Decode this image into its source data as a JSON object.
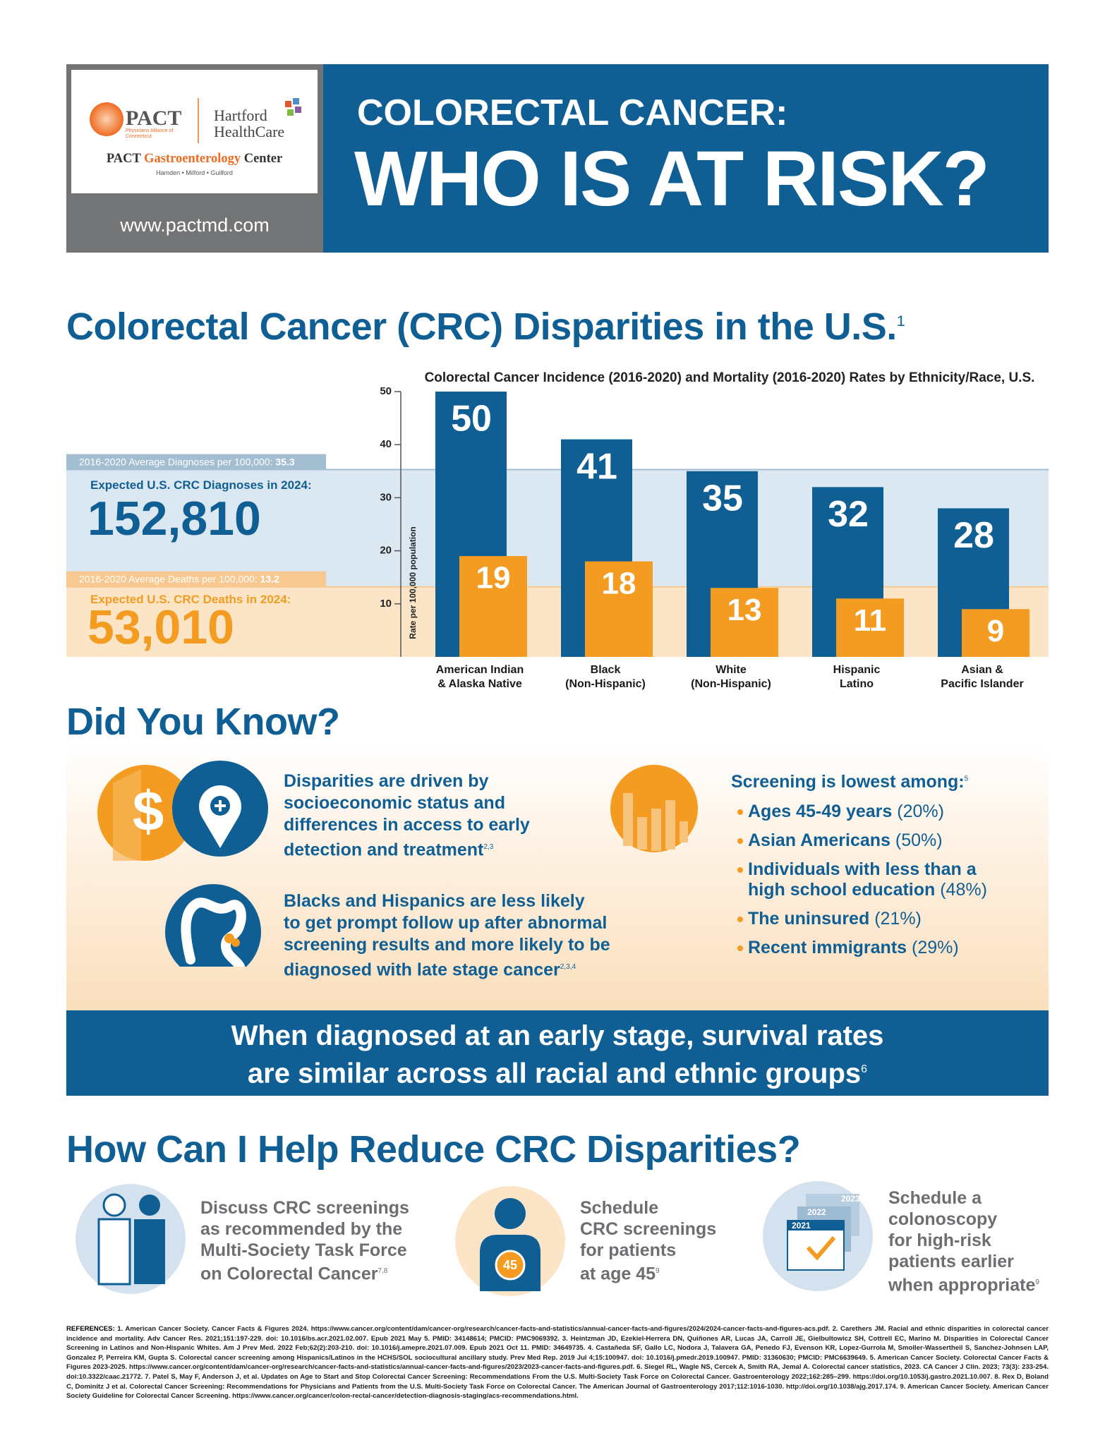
{
  "header": {
    "logo": {
      "pact": "PACT",
      "pact_sub": "Physicians Alliance of Connecticut",
      "partner": "Hartford\nHealthCare",
      "center_a": "PACT ",
      "center_b": "Gastroenterology",
      "center_c": " Center",
      "locations": "Hamden • Milford • Guilford"
    },
    "url": "www.pactmd.com",
    "title_line1": "COLORECTAL CANCER:",
    "title_line2": "WHO IS AT RISK?"
  },
  "disparities": {
    "heading": "Colorectal Cancer (CRC) Disparities in the U.S.",
    "heading_ref": "1",
    "diagnoses_label": "Expected U.S. CRC Diagnoses in 2024:",
    "diagnoses_value": "152,810",
    "deaths_label": "Expected U.S. CRC Deaths in 2024:",
    "deaths_value": "53,010"
  },
  "chart_data": {
    "type": "bar",
    "title": "Colorectal Cancer Incidence (2016-2020) and Mortality (2016-2020) Rates by Ethnicity/Race, U.S.",
    "y_label": "Rate per 100,000 population",
    "categories": [
      "American Indian\n& Alaska Native",
      "Black\n(Non-Hispanic)",
      "White\n(Non-Hispanic)",
      "Hispanic\nLatino",
      "Asian &\nPacific Islander"
    ],
    "series": [
      {
        "color": "#0f5f95",
        "values": [
          50,
          41,
          35,
          32,
          28
        ]
      },
      {
        "color": "#f39c21",
        "values": [
          19,
          18,
          13,
          11,
          9
        ]
      }
    ],
    "reference_lines": [
      {
        "label": "2016-2020 Average Diagnoses per 100,000: ",
        "value": 35.3,
        "color": "#dce8f1",
        "line_color": "#a3bdd1"
      },
      {
        "label": "2016-2020 Average Deaths per 100,000: ",
        "value": 13.2,
        "color": "#fce5c7",
        "line_color": "#f7c88f"
      }
    ],
    "ylim": [
      0,
      50
    ],
    "yticks": [
      10,
      20,
      30,
      40,
      50
    ]
  },
  "did_you_know": {
    "heading": "Did You Know?",
    "icon_symbol": "$",
    "fact1": "Disparities are driven by\nsocioeconomic status and\ndifferences in access to early\ndetection and treatment",
    "fact1_ref": "2,3",
    "fact2": "Blacks and Hispanics are less likely\nto get prompt follow up after abnormal\nscreening results and more likely to be\ndiagnosed with late stage cancer",
    "fact2_ref": "2,3,4",
    "screening_heading": "Screening is lowest among:",
    "screening_ref": "5",
    "screening": [
      {
        "group": "Ages 45-49 years ",
        "share": "(20%)"
      },
      {
        "group": "Asian Americans ",
        "share": "(50%)"
      },
      {
        "group": "Individuals with less than a\nhigh school education ",
        "share": "(48%)"
      },
      {
        "group": "The uninsured ",
        "share": "(21%)"
      },
      {
        "group": "Recent immigrants ",
        "share": "(29%)"
      }
    ]
  },
  "banner": {
    "text": "When diagnosed at an early stage, survival rates\nare similar across all racial and ethnic groups",
    "ref": "6"
  },
  "help": {
    "heading": "How Can I Help Reduce CRC Disparities?",
    "badge": "45",
    "calendar_years": [
      "2023",
      "2022",
      "2021"
    ],
    "items": [
      {
        "text": "Discuss CRC screenings\nas recommended by the\nMulti-Society Task Force\non Colorectal Cancer",
        "ref": "7,8"
      },
      {
        "text": "Schedule\nCRC screenings\nfor patients\nat age 45",
        "ref": "9"
      },
      {
        "text": "Schedule a\ncolonoscopy\nfor high-risk\npatients earlier\nwhen appropriate",
        "ref": "9"
      }
    ]
  },
  "references": {
    "label": "REFERENCES: ",
    "text": "1. American Cancer Society. Cancer Facts & Figures 2024. https://www.cancer.org/content/dam/cancer-org/research/cancer-facts-and-statistics/annual-cancer-facts-and-figures/2024/2024-cancer-facts-and-figures-acs.pdf. 2. Carethers JM. Racial and ethnic disparities in colorectal cancer incidence and mortality. Adv Cancer Res. 2021;151:197-229. doi: 10.1016/bs.acr.2021.02.007. Epub 2021 May 5. PMID: 34148614; PMCID: PMC9069392. 3. Heintzman JD, Ezekiel-Herrera DN, Quiñones AR, Lucas JA, Carroll JE, Gielbultowicz SH, Cottrell EC, Marino M. Disparities in Colorectal Cancer Screening in Latinos and Non-Hispanic Whites. Am J Prev Med. 2022 Feb;62(2):203-210. doi: 10.1016/j.amepre.2021.07.009. Epub 2021 Oct 11. PMID: 34649735. 4. Castañeda SF, Gallo LC, Nodora J, Talavera GA, Penedo FJ, Evenson KR, Lopez-Gurrola M, Smoller-Wassertheil S, Sanchez-Johnsen LAP, Gonzalez P, Perreira KM, Gupta S. Colorectal cancer screening among Hispanics/Latinos in the HCHS/SOL sociocultural ancillary study. Prev Med Rep. 2019 Jul 4;15:100947. doi: 10.1016/j.pmedr.2019.100947. PMID: 31360630; PMCID: PMC6639649. 5. American Cancer Society. Colorectal Cancer Facts & Figures 2023-2025. https://www.cancer.org/content/dam/cancer-org/research/cancer-facts-and-statistics/annual-cancer-facts-and-figures/2023/2023-cancer-facts-and-figures.pdf. 6. Siegel RL, Wagle NS, Cercek A, Smith RA, Jemal A. Colorectal cancer statistics, 2023. CA Cancer J Clin. 2023; 73(3): 233-254. doi:10.3322/caac.21772. 7. Patel S, May F, Anderson J, et al. Updates on Age to Start and Stop Colorectal Cancer Screening: Recommendations From the U.S. Multi-Society Task Force on Colorectal Cancer. Gastroenterology 2022;162:285–299. https://doi.org/10.1053/j.gastro.2021.10.007. 8. Rex D, Boland C, Dominitz J et al. Colorectal Cancer Screening: Recommendations for Physicians and Patients from the U.S. Multi-Society Task Force on Colorectal Cancer. The American Journal of Gastroenterology 2017;112:1016-1030. http://doi.org/10.1038/ajg.2017.174. 9. American Cancer Society. American Cancer Society Guideline for Colorectal Cancer Screening. https://www.cancer.org/cancer/colon-rectal-cancer/detection-diagnosis-staging/acs-recommendations.html."
  }
}
